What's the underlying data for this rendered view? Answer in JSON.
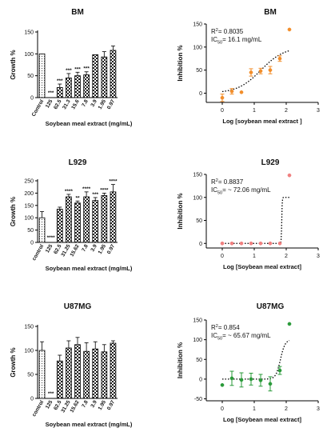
{
  "chart_data": [
    {
      "type": "bar",
      "title": "BM",
      "xlabel": "Soybean meal extract (mg/mL)",
      "ylabel": "Growth %",
      "ylim": [
        0,
        150
      ],
      "yticks": [
        0,
        50,
        100,
        150
      ],
      "categories": [
        "Control",
        "125",
        "62.5",
        "31.3",
        "15.6",
        "7.8",
        "3.9",
        "1.95",
        "0.97"
      ],
      "values": [
        100,
        0,
        23,
        45,
        50,
        52,
        98,
        93,
        108
      ],
      "errors": [
        0,
        0,
        8,
        10,
        8,
        7,
        0,
        12,
        10
      ],
      "annotations": [
        "",
        "***",
        "***",
        "***",
        "***",
        "***",
        "",
        "",
        ""
      ],
      "patterns": [
        "dots",
        "none",
        "check",
        "check",
        "check",
        "check",
        "check",
        "check",
        "check"
      ]
    },
    {
      "type": "scatter",
      "title": "BM",
      "xlabel": "Log [soybean meal extract ]",
      "ylabel": "Inhibition %",
      "xlim": [
        -0.5,
        3
      ],
      "xticks": [
        0,
        1,
        2,
        3
      ],
      "ylim": [
        -20,
        150
      ],
      "yticks": [
        0,
        50,
        100,
        150
      ],
      "color": "#f28e2b",
      "points": [
        {
          "x": 0.0,
          "y": -10,
          "err": 8
        },
        {
          "x": 0.3,
          "y": 4,
          "err": 6
        },
        {
          "x": 0.6,
          "y": 2,
          "err": 0
        },
        {
          "x": 0.9,
          "y": 45,
          "err": 8
        },
        {
          "x": 1.2,
          "y": 48,
          "err": 6
        },
        {
          "x": 1.5,
          "y": 50,
          "err": 8
        },
        {
          "x": 1.8,
          "y": 75,
          "err": 6
        },
        {
          "x": 2.1,
          "y": 138,
          "err": 0
        }
      ],
      "fit": {
        "bottom": 0,
        "top": 100,
        "logIC50": 1.21,
        "hill": 1.2,
        "x_range": [
          0,
          2.1
        ]
      },
      "stats": {
        "r2_label": "R",
        "r2_value": "= 0.8035",
        "ic_label": "IC",
        "ic_sub": "50",
        "ic_value": "= 16.1 mg/mL"
      }
    },
    {
      "type": "bar",
      "title": "L929",
      "xlabel": "Soybean meal extract (mg/mL)",
      "ylabel": "Growth %",
      "ylim": [
        0,
        250
      ],
      "yticks": [
        0,
        50,
        100,
        150,
        200,
        250
      ],
      "categories": [
        "control",
        "125",
        "62.5",
        "31.25",
        "15.62",
        "7.8",
        "3.9",
        "1.95",
        "0.97"
      ],
      "values": [
        100,
        0,
        135,
        185,
        160,
        185,
        170,
        190,
        205
      ],
      "errors": [
        25,
        0,
        8,
        10,
        8,
        20,
        12,
        10,
        30
      ],
      "annotations": [
        "",
        "****",
        "",
        "****",
        "**",
        "****",
        "***",
        "****",
        "****"
      ],
      "patterns": [
        "dots",
        "none",
        "check",
        "check",
        "check",
        "check",
        "check",
        "check",
        "check"
      ]
    },
    {
      "type": "scatter",
      "title": "L929",
      "xlabel": "Log [Soybean meal extract]",
      "ylabel": "Inhibition %",
      "xlim": [
        -0.5,
        3
      ],
      "xticks": [
        0,
        1,
        2,
        3
      ],
      "ylim": [
        -10,
        150
      ],
      "yticks": [
        0,
        50,
        100,
        150
      ],
      "color": "#f08080",
      "points": [
        {
          "x": 0.0,
          "y": 0,
          "err": 0
        },
        {
          "x": 0.3,
          "y": 0,
          "err": 0
        },
        {
          "x": 0.6,
          "y": 0,
          "err": 0
        },
        {
          "x": 0.9,
          "y": 0,
          "err": 0
        },
        {
          "x": 1.2,
          "y": 0,
          "err": 0
        },
        {
          "x": 1.5,
          "y": 0,
          "err": 0
        },
        {
          "x": 1.8,
          "y": 0,
          "err": 0
        },
        {
          "x": 2.1,
          "y": 148,
          "err": 0
        }
      ],
      "fit": {
        "bottom": 0,
        "top": 100,
        "logIC50": 1.86,
        "hill": 60,
        "x_range": [
          0,
          2.1
        ]
      },
      "stats": {
        "r2_label": "R",
        "r2_value": "= 0.8837",
        "ic_label": "IC",
        "ic_sub": "50",
        "ic_value": "= ~ 72.06 mg/mL"
      }
    },
    {
      "type": "bar",
      "title": "U87MG",
      "xlabel": "Soybean meal extract (mg/mL)",
      "ylabel": "Growth %",
      "ylim": [
        0,
        150
      ],
      "yticks": [
        0,
        50,
        100,
        150
      ],
      "categories": [
        "control",
        "125",
        "62.5",
        "31.25",
        "15.62",
        "7.8",
        "3.9",
        "1.95",
        "0.97"
      ],
      "values": [
        100,
        0,
        78,
        105,
        112,
        98,
        103,
        97,
        115
      ],
      "errors": [
        18,
        0,
        12,
        15,
        15,
        18,
        15,
        15,
        5
      ],
      "annotations": [
        "",
        "***",
        "",
        "",
        "",
        "",
        "",
        "",
        ""
      ],
      "patterns": [
        "dots",
        "none",
        "check",
        "check",
        "check",
        "check",
        "check",
        "check",
        "check"
      ]
    },
    {
      "type": "scatter",
      "title": "U87MG",
      "xlabel": "Log [Soybean meal extract]",
      "ylabel": "Inhibition %",
      "xlim": [
        -0.5,
        3
      ],
      "xticks": [
        0,
        1,
        2,
        3
      ],
      "ylim": [
        -55,
        150
      ],
      "yticks": [
        -50,
        0,
        50,
        100,
        150
      ],
      "color": "#2a9a3a",
      "points": [
        {
          "x": 0.0,
          "y": -15,
          "err": 0
        },
        {
          "x": 0.3,
          "y": 2,
          "err": 18
        },
        {
          "x": 0.6,
          "y": -2,
          "err": 18
        },
        {
          "x": 0.9,
          "y": 0,
          "err": 15
        },
        {
          "x": 1.2,
          "y": -3,
          "err": 15
        },
        {
          "x": 1.5,
          "y": -12,
          "err": 18
        },
        {
          "x": 1.8,
          "y": 22,
          "err": 10
        },
        {
          "x": 2.1,
          "y": 140,
          "err": 0
        }
      ],
      "fit": {
        "bottom": 0,
        "top": 100,
        "logIC50": 1.82,
        "hill": 6,
        "x_range": [
          0,
          2.1
        ]
      },
      "stats": {
        "r2_label": "R",
        "r2_value": "= 0.854",
        "ic_label": "IC",
        "ic_sub": "50",
        "ic_value": "= ~ 65.67 mg/mL"
      }
    }
  ]
}
